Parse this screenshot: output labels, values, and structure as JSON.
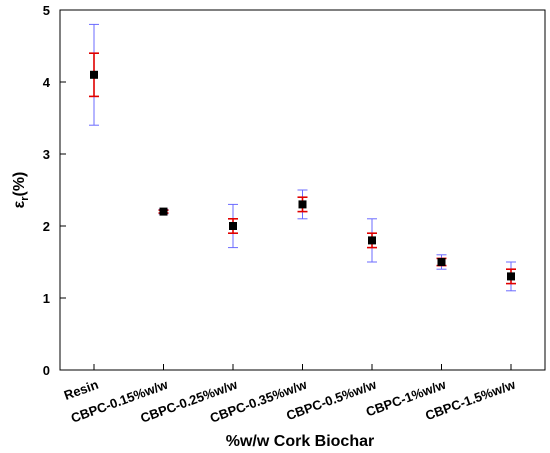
{
  "chart_data": {
    "type": "scatter",
    "xlabel": "%w/w Cork Biochar",
    "ylabel": "ε",
    "ylabel_subscript": "r",
    "ylabel_suffix": "(%)",
    "ylim": [
      0,
      5
    ],
    "yticks": [
      "0",
      "1",
      "2",
      "3",
      "4",
      "5"
    ],
    "categories": [
      "Resin",
      "CBPC-0.15%w/w",
      "CBPC-0.25%w/w",
      "CBPC-0.35%w/w",
      "CBPC-0.5%w/w",
      "CBPC-1%w/w",
      "CBPC-1.5%w/w"
    ],
    "values": [
      4.1,
      2.2,
      2.0,
      2.3,
      1.8,
      1.5,
      1.3
    ],
    "error_outer_low": [
      3.4,
      2.17,
      1.7,
      2.1,
      1.5,
      1.4,
      1.1
    ],
    "error_outer_high": [
      4.8,
      2.23,
      2.3,
      2.5,
      2.1,
      1.6,
      1.5
    ],
    "error_inner_low": [
      3.8,
      2.18,
      1.9,
      2.2,
      1.7,
      1.45,
      1.2
    ],
    "error_inner_high": [
      4.4,
      2.22,
      2.1,
      2.4,
      1.9,
      1.55,
      1.4
    ],
    "colors": {
      "outer_error": "#6b6bff",
      "inner_error": "#e00000",
      "marker": "#000000"
    },
    "grid": false,
    "legend": "none"
  }
}
